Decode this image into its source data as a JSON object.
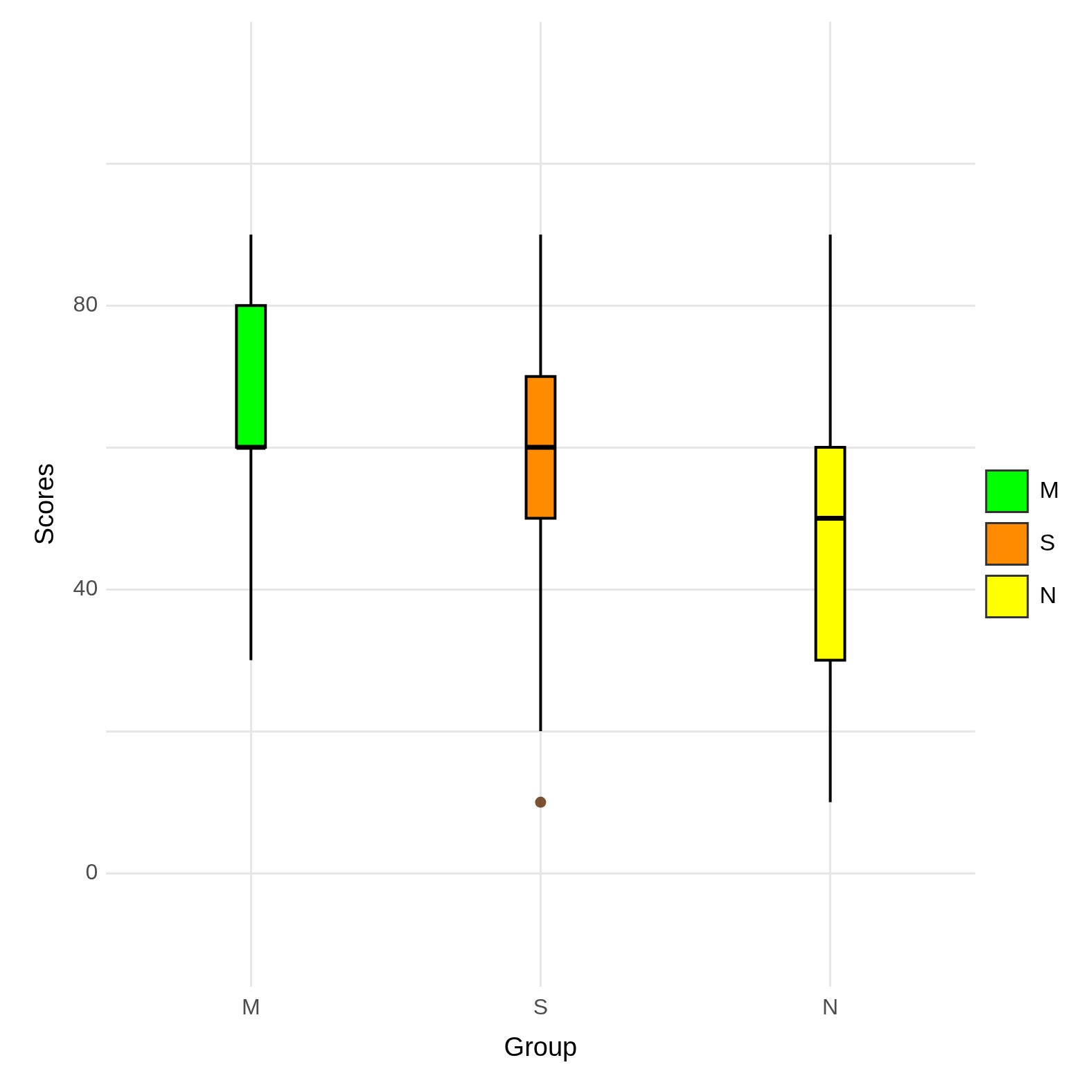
{
  "chart_data": {
    "type": "box",
    "xlabel": "Group",
    "ylabel": "Scores",
    "categories": [
      "M",
      "S",
      "N"
    ],
    "series": [
      {
        "name": "M",
        "color": "#00ff00",
        "boxes": [
          {
            "low": 30,
            "q1": 60,
            "median": 60,
            "q3": 80,
            "high": 90
          },
          null,
          null
        ]
      },
      {
        "name": "S",
        "color": "#ff8c00",
        "boxes": [
          null,
          {
            "low": 20,
            "q1": 50,
            "median": 60,
            "q3": 70,
            "high": 90,
            "outliers": [
              10
            ]
          },
          null
        ]
      },
      {
        "name": "N",
        "color": "#ffff00",
        "boxes": [
          null,
          null,
          {
            "low": 10,
            "q1": 30,
            "median": 50,
            "q3": 60,
            "high": 90
          }
        ]
      }
    ],
    "ylim": [
      -16,
      120
    ],
    "yticks": [
      0,
      {
        "value": 20,
        "label": null
      },
      40,
      {
        "value": 60,
        "label": null
      },
      80,
      {
        "value": 100,
        "label": null
      }
    ],
    "grid": true,
    "legend": "right"
  }
}
